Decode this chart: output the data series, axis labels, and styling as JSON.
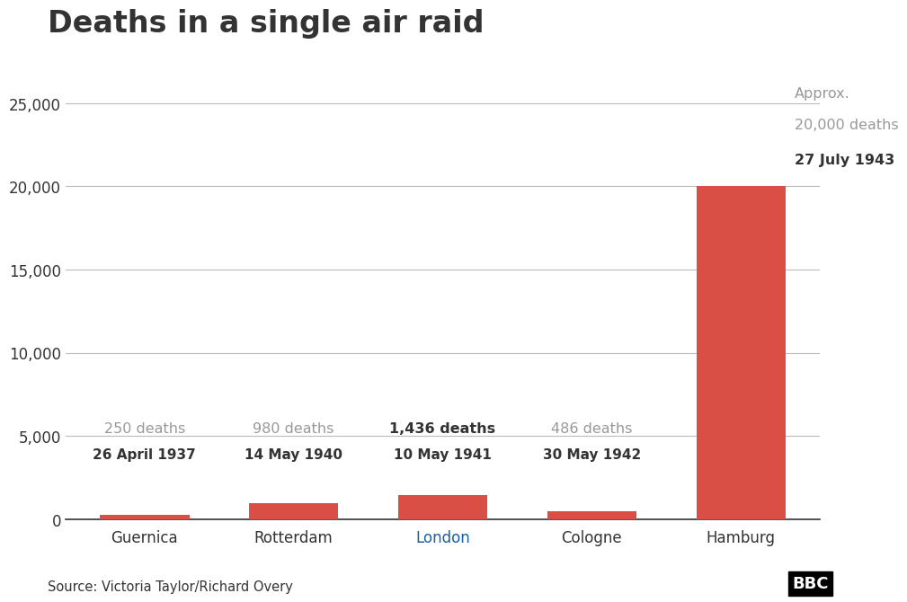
{
  "title": "Deaths in a single air raid",
  "categories": [
    "Guernica",
    "Rotterdam",
    "London",
    "Cologne",
    "Hamburg"
  ],
  "values": [
    250,
    980,
    1436,
    486,
    20000
  ],
  "dates": [
    "26 April 1937",
    "14 May 1940",
    "10 May 1941",
    "30 May 1942",
    "27 July 1943"
  ],
  "death_labels": [
    "250 deaths",
    "980 deaths",
    "1,436 deaths",
    "486 deaths",
    "Approx.\n20,000 deaths"
  ],
  "bar_color": "#d94f45",
  "background_color": "#ffffff",
  "grid_color": "#bbbbbb",
  "text_color_light": "#999999",
  "text_color_dark": "#333333",
  "ylim": [
    0,
    27000
  ],
  "yticks": [
    0,
    5000,
    10000,
    15000,
    20000,
    25000
  ],
  "ytick_labels": [
    "0",
    "5,000",
    "10,000",
    "15,000",
    "20,000",
    "25,000"
  ],
  "source": "Source: Victoria Taylor/Richard Overy",
  "title_fontsize": 24,
  "label_fontsize": 11.5,
  "tick_fontsize": 12,
  "source_fontsize": 10.5,
  "london_color": "#1a5fa8",
  "death_label_bold": [
    false,
    false,
    true,
    false,
    false
  ]
}
